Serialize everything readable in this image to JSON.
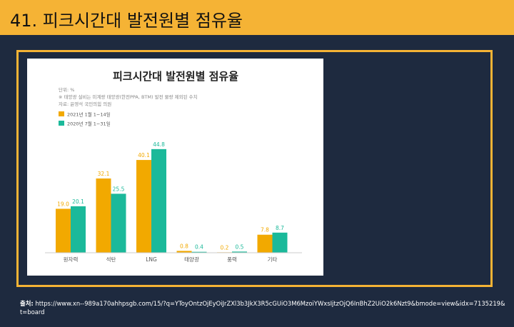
{
  "slide": {
    "title": "41. 피크시간대 발전원별 점유율",
    "source_label": "출처:",
    "source_url": "https://www.xn--989a170ahhpsgb.com/15/?q=YToyOntzOjEyOiJrZXl3b3JkX3R5cGUiO3M6MzoiYWxsIjtzOjQ6InBhZ2UiO2k6Nzt9&bmode=view&idx=7135219&t=board"
  },
  "chart_data": {
    "type": "bar",
    "title": "피크시간대 발전원별 점유율",
    "notes": [
      "단위: %",
      "※ 태양광 설비는 미계량 태양광(한전PPA, BTM) 발전 물량 제외된 수치",
      "자료: 윤영석 국민의힘 의원"
    ],
    "categories": [
      "원자력",
      "석탄",
      "LNG",
      "태양광",
      "풍력",
      "기타"
    ],
    "series": [
      {
        "name": "2021년 1월 1~14일",
        "color": "#f2a900",
        "values": [
          19.0,
          32.1,
          40.1,
          0.8,
          0.2,
          7.8
        ],
        "labels": [
          "19.0",
          "32.1",
          "40.1",
          "0.8",
          "0.2",
          "7.8"
        ]
      },
      {
        "name": "2020년 7월 1~31일",
        "color": "#1bb99a",
        "values": [
          20.1,
          25.5,
          44.8,
          0.4,
          0.5,
          8.7
        ],
        "labels": [
          "20.1",
          "25.5",
          "44.8",
          "0.4",
          "0.5",
          "8.7"
        ]
      }
    ],
    "ylim": [
      0,
      50
    ],
    "grid": false,
    "legend": "top-left"
  }
}
